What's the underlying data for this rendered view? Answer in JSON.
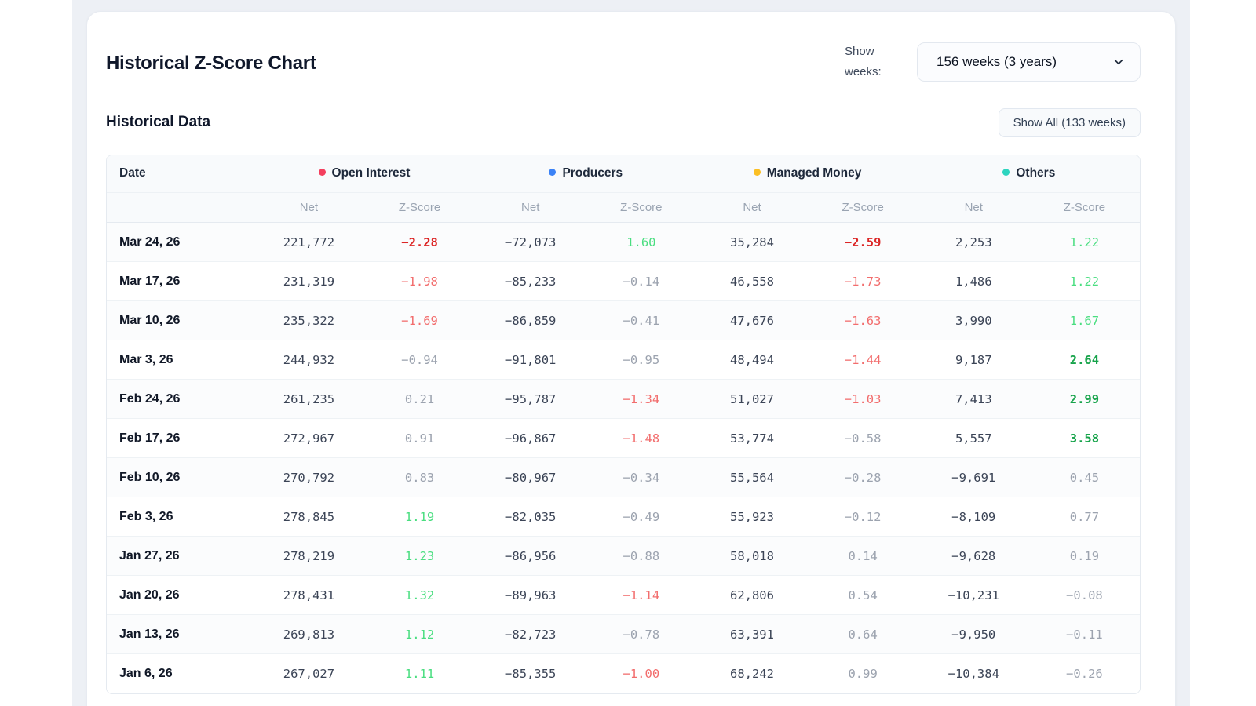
{
  "header": {
    "title": "Historical Z-Score Chart",
    "show_weeks_label": "Show weeks:",
    "weeks_select_value": "156 weeks (3 years)"
  },
  "section": {
    "heading": "Historical Data",
    "show_all_button_label": "Show All (133 weeks)"
  },
  "table": {
    "date_header": "Date",
    "groups": [
      {
        "label": "Open Interest",
        "color": "#f43f5e"
      },
      {
        "label": "Producers",
        "color": "#3b82f6"
      },
      {
        "label": "Managed Money",
        "color": "#fbbf24"
      },
      {
        "label": "Others",
        "color": "#2dd4bf"
      }
    ],
    "sub_headers": [
      "Net",
      "Z-Score"
    ],
    "rows": [
      {
        "date": "Mar 24, 26",
        "values": [
          "221,772",
          "-2.28",
          "-72,073",
          "1.60",
          "35,284",
          "-2.59",
          "2,253",
          "1.22"
        ]
      },
      {
        "date": "Mar 17, 26",
        "values": [
          "231,319",
          "-1.98",
          "-85,233",
          "-0.14",
          "46,558",
          "-1.73",
          "1,486",
          "1.22"
        ]
      },
      {
        "date": "Mar 10, 26",
        "values": [
          "235,322",
          "-1.69",
          "-86,859",
          "-0.41",
          "47,676",
          "-1.63",
          "3,990",
          "1.67"
        ]
      },
      {
        "date": "Mar 3, 26",
        "values": [
          "244,932",
          "-0.94",
          "-91,801",
          "-0.95",
          "48,494",
          "-1.44",
          "9,187",
          "2.64"
        ]
      },
      {
        "date": "Feb 24, 26",
        "values": [
          "261,235",
          "0.21",
          "-95,787",
          "-1.34",
          "51,027",
          "-1.03",
          "7,413",
          "2.99"
        ]
      },
      {
        "date": "Feb 17, 26",
        "values": [
          "272,967",
          "0.91",
          "-96,867",
          "-1.48",
          "53,774",
          "-0.58",
          "5,557",
          "3.58"
        ]
      },
      {
        "date": "Feb 10, 26",
        "values": [
          "270,792",
          "0.83",
          "-80,967",
          "-0.34",
          "55,564",
          "-0.28",
          "-9,691",
          "0.45"
        ]
      },
      {
        "date": "Feb 3, 26",
        "values": [
          "278,845",
          "1.19",
          "-82,035",
          "-0.49",
          "55,923",
          "-0.12",
          "-8,109",
          "0.77"
        ]
      },
      {
        "date": "Jan 27, 26",
        "values": [
          "278,219",
          "1.23",
          "-86,956",
          "-0.88",
          "58,018",
          "0.14",
          "-9,628",
          "0.19"
        ]
      },
      {
        "date": "Jan 20, 26",
        "values": [
          "278,431",
          "1.32",
          "-89,963",
          "-1.14",
          "62,806",
          "0.54",
          "-10,231",
          "-0.08"
        ]
      },
      {
        "date": "Jan 13, 26",
        "values": [
          "269,813",
          "1.12",
          "-82,723",
          "-0.78",
          "63,391",
          "0.64",
          "-9,950",
          "-0.11"
        ]
      },
      {
        "date": "Jan 6, 26",
        "values": [
          "267,027",
          "1.11",
          "-85,355",
          "-1.00",
          "68,242",
          "0.99",
          "-10,384",
          "-0.26"
        ]
      }
    ]
  },
  "theme": {
    "z_neutral": "#9ca3af",
    "z_mild_negative": "#f26d6d",
    "z_mild_positive": "#4ade80",
    "z_strong_negative": "#dc2626",
    "z_strong_positive": "#16a34a",
    "net_value_color": "#3b4456"
  }
}
